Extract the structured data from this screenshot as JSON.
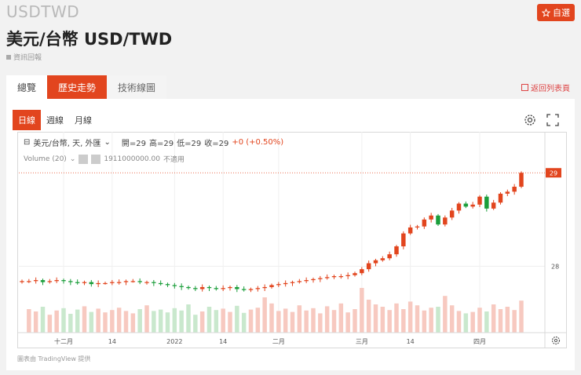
{
  "header": {
    "ticker": "USDTWD",
    "title": "美元/台幣 USD/TWD",
    "note": "資訊回報",
    "fav_label": "自選"
  },
  "tabs": [
    {
      "label": "總覽"
    },
    {
      "label": "歷史走勢"
    },
    {
      "label": "技術線圖"
    }
  ],
  "back_link": "返回列表頁",
  "intervals": [
    {
      "label": "日線"
    },
    {
      "label": "週線"
    },
    {
      "label": "月線"
    }
  ],
  "legend": {
    "symbol": "美元/台幣, 天, 外匯",
    "open": "開=29",
    "high": "高=29",
    "low": "低=29",
    "close": "收=29",
    "change": "+0 (+0.50%)",
    "volume_label": "Volume (20)",
    "volume_value": "1911000000.00",
    "volume_na": "不適用"
  },
  "credit": "圖表由 TradingView 提供",
  "colors": {
    "accent": "#e2451e",
    "up": "#e2451e",
    "down": "#1b9e3b"
  },
  "chart_data": {
    "type": "candlestick",
    "title": "美元/台幣",
    "y_range": [
      27.6,
      29.1
    ],
    "y_ticks": [
      "28"
    ],
    "last_price_label": "29",
    "x_tick_labels": [
      "十二月",
      "14",
      "2022",
      "14",
      "二月",
      "三月",
      "14",
      "四月"
    ],
    "closes": [
      27.85,
      27.85,
      27.86,
      27.84,
      27.85,
      27.86,
      27.85,
      27.84,
      27.83,
      27.84,
      27.82,
      27.83,
      27.83,
      27.84,
      27.84,
      27.85,
      27.85,
      27.84,
      27.84,
      27.83,
      27.82,
      27.81,
      27.8,
      27.79,
      27.78,
      27.77,
      27.79,
      27.78,
      27.77,
      27.78,
      27.79,
      27.77,
      27.76,
      27.77,
      27.78,
      27.79,
      27.81,
      27.82,
      27.83,
      27.84,
      27.85,
      27.86,
      27.87,
      27.88,
      27.89,
      27.9,
      27.9,
      27.91,
      27.93,
      27.97,
      28.03,
      28.06,
      28.08,
      28.12,
      28.2,
      28.33,
      28.39,
      28.4,
      28.47,
      28.51,
      28.42,
      28.49,
      28.56,
      28.63,
      28.6,
      28.62,
      28.7,
      28.58,
      28.64,
      28.73,
      28.75,
      28.8,
      28.94
    ],
    "volumes": [
      0.42,
      0.5,
      0.45,
      0.55,
      0.38,
      0.47,
      0.52,
      0.4,
      0.49,
      0.56,
      0.44,
      0.51,
      0.43,
      0.48,
      0.53,
      0.46,
      0.41,
      0.5,
      0.58,
      0.46,
      0.49,
      0.43,
      0.52,
      0.47,
      0.6,
      0.38,
      0.45,
      0.55,
      0.48,
      0.51,
      0.44,
      0.57,
      0.42,
      0.49,
      0.53,
      0.75,
      0.62,
      0.46,
      0.51,
      0.44,
      0.58,
      0.47,
      0.52,
      0.41,
      0.56,
      0.48,
      0.62,
      0.43,
      0.5,
      0.95,
      0.7,
      0.6,
      0.55,
      0.48,
      0.62,
      0.5,
      0.66,
      0.58,
      0.47,
      0.53,
      0.55,
      0.78,
      0.58,
      0.46,
      0.41,
      0.44,
      0.53,
      0.45,
      0.6,
      0.5,
      0.55,
      0.48,
      0.68
    ]
  }
}
